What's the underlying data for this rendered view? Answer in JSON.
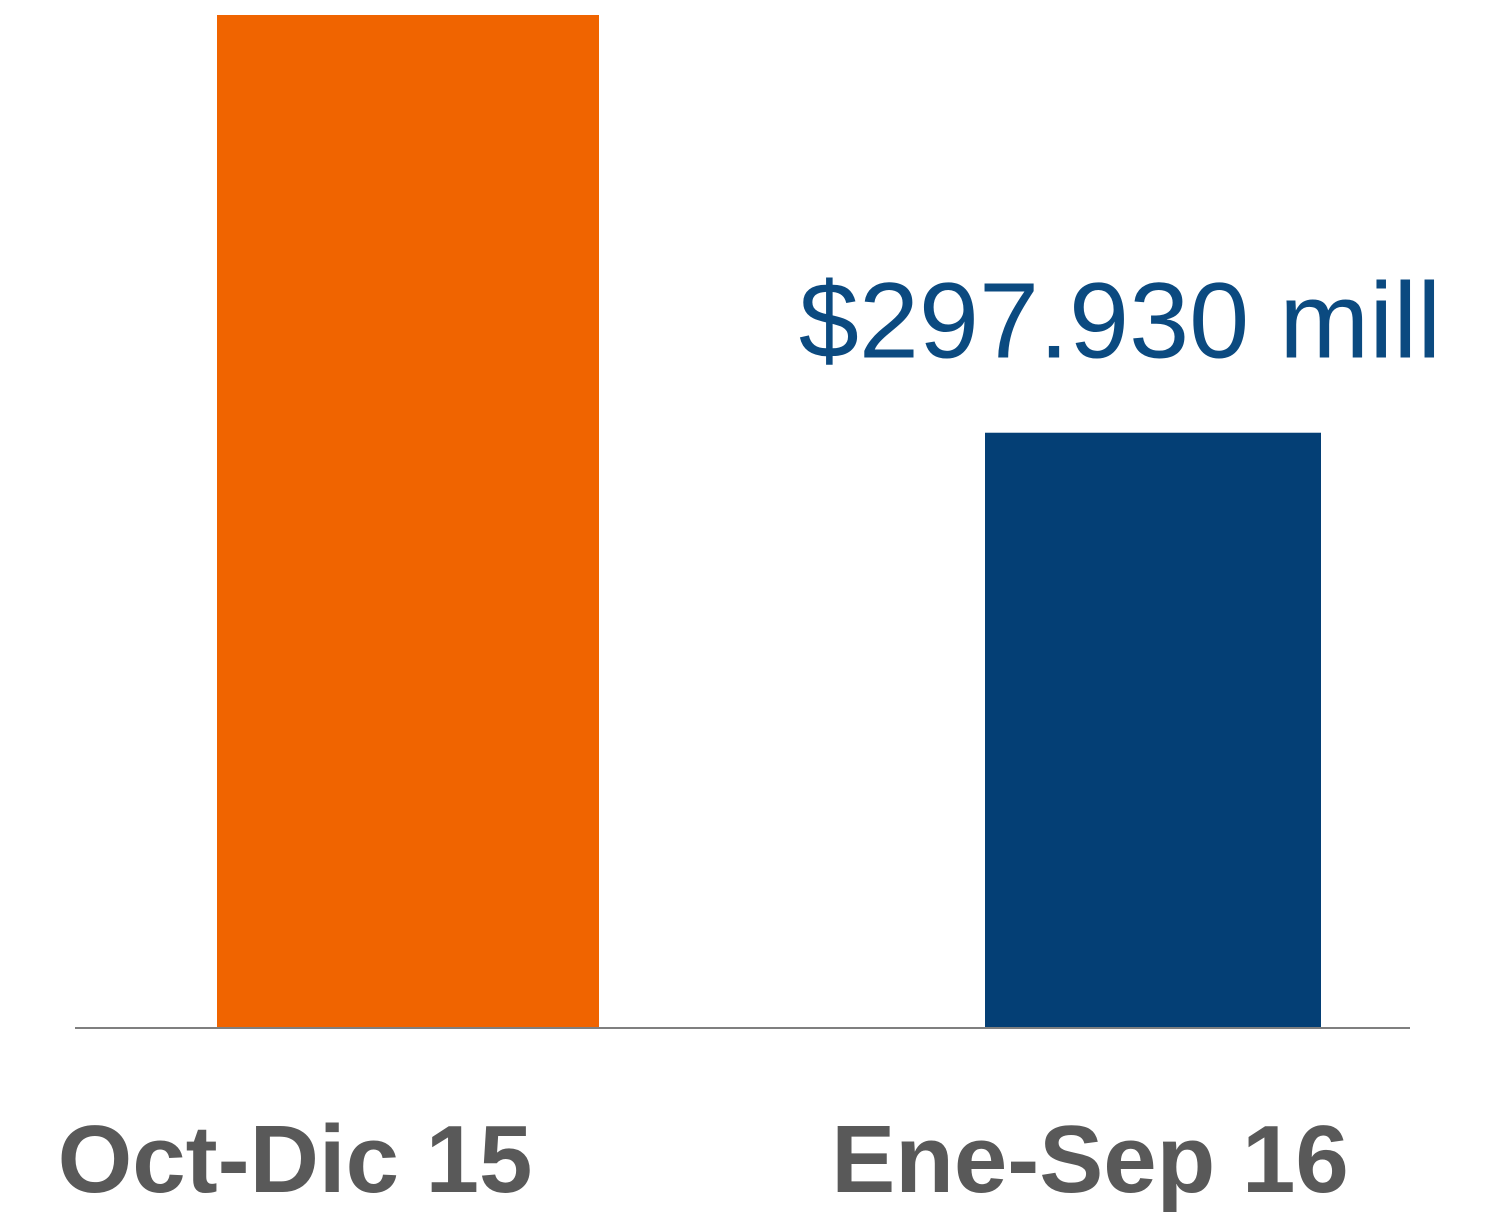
{
  "chart_data": {
    "type": "bar",
    "categories": [
      "Oct-Dic 15",
      "Ene-Sep 16"
    ],
    "values": [
      507000,
      297930
    ],
    "value_labels": [
      null,
      "$297.930 mill"
    ],
    "colors": [
      "#f06400",
      "#043f75"
    ]
  }
}
